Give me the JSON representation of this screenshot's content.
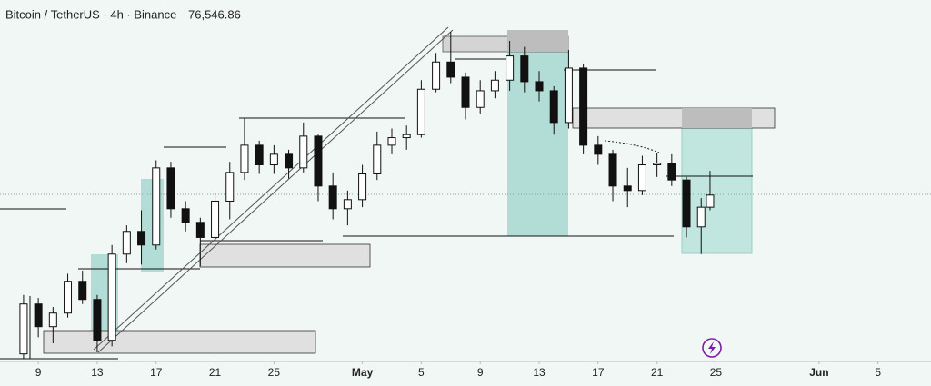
{
  "chart_data": {
    "type": "candlestick",
    "title": "Bitcoin / TetherUS · 4h · Binance",
    "price": {
      "value": 76546.86,
      "label": "76,546.86"
    },
    "xlim": [
      5.4,
      68.6
    ],
    "ylim": [
      65500,
      89400
    ],
    "xticks": [
      {
        "value": 8,
        "label": "9"
      },
      {
        "value": 12,
        "label": "13"
      },
      {
        "value": 16,
        "label": "17"
      },
      {
        "value": 20,
        "label": "21"
      },
      {
        "value": 24,
        "label": "25"
      },
      {
        "value": 30,
        "label": "May"
      },
      {
        "value": 34,
        "label": "5"
      },
      {
        "value": 38,
        "label": "9"
      },
      {
        "value": 42,
        "label": "13"
      },
      {
        "value": 46,
        "label": "17"
      },
      {
        "value": 50,
        "label": "21"
      },
      {
        "value": 54,
        "label": "25"
      },
      {
        "value": 61,
        "label": "Jun"
      },
      {
        "value": 65,
        "label": "5"
      }
    ],
    "up_color": "#ffffff",
    "down_color": "#111111",
    "x": [
      7,
      8,
      9,
      10,
      11,
      12,
      13,
      14,
      15,
      16,
      17,
      18,
      19,
      20,
      21,
      22,
      23,
      24,
      25,
      26,
      27,
      28,
      29,
      30,
      31,
      32,
      33,
      34,
      35,
      36,
      37,
      38,
      39,
      40,
      41,
      42,
      43,
      44,
      45,
      46,
      47,
      48,
      49,
      50,
      51,
      52,
      53,
      53.6
    ],
    "open": [
      66000,
      69300,
      67800,
      68700,
      70800,
      69600,
      66900,
      72600,
      74100,
      73200,
      78300,
      75600,
      74700,
      73700,
      76100,
      78000,
      79800,
      78500,
      79200,
      78300,
      80400,
      77100,
      75600,
      76200,
      77900,
      79800,
      80300,
      80500,
      83500,
      85300,
      84300,
      82300,
      83400,
      84100,
      85700,
      84000,
      83400,
      81300,
      84900,
      79800,
      79200,
      77100,
      76800,
      78500,
      78600,
      77500,
      74400,
      75700
    ],
    "high": [
      69900,
      69700,
      69100,
      71300,
      71500,
      69900,
      73200,
      74500,
      75500,
      78800,
      78700,
      76100,
      75000,
      76700,
      78700,
      81600,
      80100,
      79800,
      79500,
      81300,
      80500,
      78000,
      76800,
      78500,
      80700,
      80900,
      81100,
      84100,
      85900,
      87300,
      84600,
      84100,
      84700,
      86700,
      86300,
      84700,
      83700,
      86100,
      85200,
      80400,
      79500,
      78300,
      79100,
      79300,
      79200,
      77700,
      76300,
      78100
    ],
    "low": [
      65700,
      67100,
      66700,
      68400,
      69300,
      66100,
      66500,
      72000,
      71900,
      72900,
      75000,
      74100,
      71800,
      73500,
      74900,
      77500,
      77900,
      77900,
      77600,
      78000,
      76100,
      74900,
      74500,
      75700,
      77500,
      79200,
      79500,
      80300,
      83300,
      83900,
      81500,
      81900,
      82900,
      83400,
      83300,
      82700,
      80500,
      80900,
      79200,
      78500,
      76100,
      75700,
      76500,
      77700,
      77100,
      73700,
      72600,
      75500
    ],
    "close": [
      69300,
      67800,
      68700,
      70800,
      69600,
      66900,
      72600,
      74100,
      73200,
      78300,
      75600,
      74700,
      73700,
      76100,
      78000,
      79800,
      78500,
      79200,
      78300,
      80400,
      77100,
      75600,
      76200,
      77900,
      79800,
      80300,
      80500,
      83500,
      85300,
      84300,
      82300,
      83400,
      84100,
      85700,
      84000,
      83400,
      81300,
      84900,
      79800,
      79200,
      77100,
      76800,
      78500,
      78600,
      77500,
      74400,
      75700,
      76500
    ]
  }
}
